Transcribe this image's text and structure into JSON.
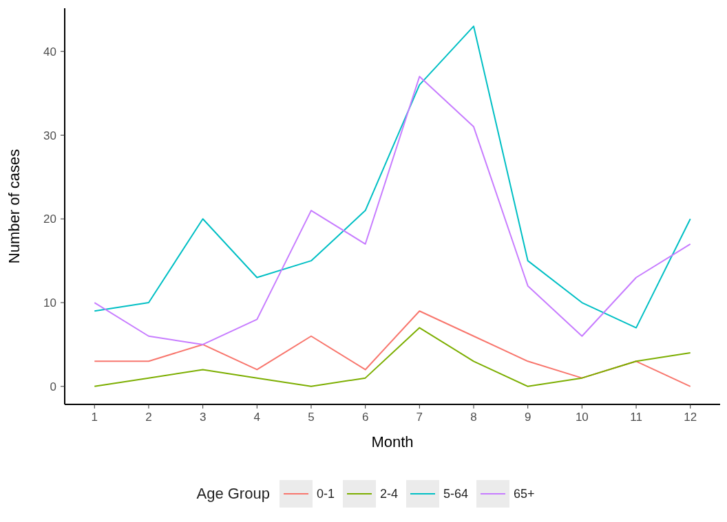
{
  "chart_data": {
    "type": "line",
    "xlabel": "Month",
    "ylabel": "Number of cases",
    "legend_title": "Age Group",
    "legend": "bottom",
    "grid": false,
    "marker": "none",
    "line_style": "solid",
    "x": [
      1,
      2,
      3,
      4,
      5,
      6,
      7,
      8,
      9,
      10,
      11,
      12
    ],
    "xlim": [
      0.45,
      12.55
    ],
    "xticks": [
      1,
      2,
      3,
      4,
      5,
      6,
      7,
      8,
      9,
      10,
      11,
      12
    ],
    "ylim": [
      -2.15,
      45.15
    ],
    "yticks": [
      0,
      10,
      20,
      30,
      40
    ],
    "series": [
      {
        "name": "0-1",
        "color": "#f8766d",
        "values": [
          3,
          3,
          5,
          2,
          6,
          2,
          9,
          6,
          3,
          1,
          3,
          0
        ]
      },
      {
        "name": "2-4",
        "color": "#7cae00",
        "values": [
          0,
          1,
          2,
          1,
          0,
          1,
          7,
          3,
          0,
          1,
          3,
          4
        ]
      },
      {
        "name": "5-64",
        "color": "#00bfc4",
        "values": [
          9,
          10,
          20,
          13,
          15,
          21,
          36,
          43,
          15,
          10,
          7,
          20
        ]
      },
      {
        "name": "65+",
        "color": "#c77cff",
        "values": [
          10,
          6,
          5,
          8,
          21,
          17,
          37,
          31,
          12,
          6,
          13,
          17
        ]
      }
    ]
  }
}
